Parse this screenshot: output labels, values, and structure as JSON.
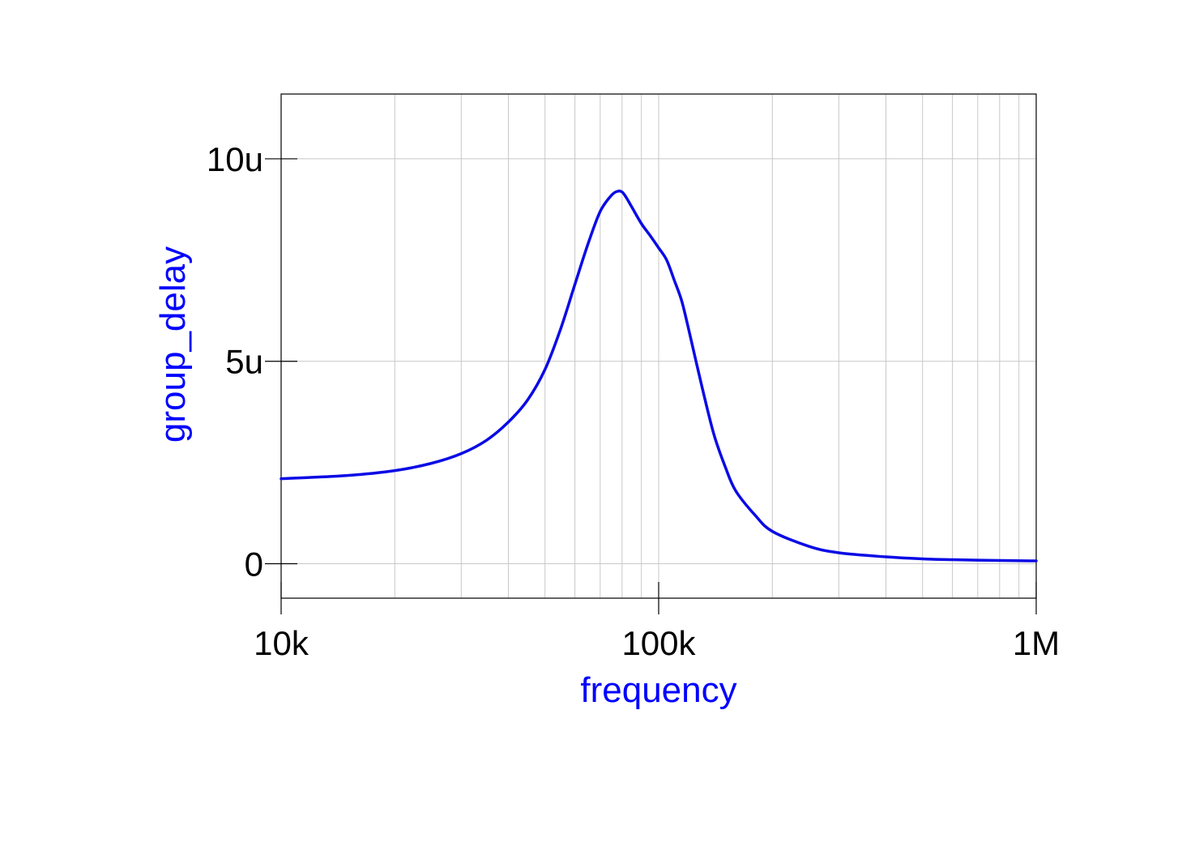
{
  "chart_data": {
    "type": "line",
    "xlabel": "frequency",
    "ylabel": "group_delay",
    "x_scale": "log",
    "xlim": [
      10000,
      1000000
    ],
    "ylim": [
      -8.5e-07,
      1.16e-05
    ],
    "grid": true,
    "x_ticks": [
      {
        "value": 10000,
        "label": "10k"
      },
      {
        "value": 100000,
        "label": "100k"
      },
      {
        "value": 1000000,
        "label": "1M"
      }
    ],
    "y_ticks": [
      {
        "value": 0,
        "label": "0"
      },
      {
        "value": 5e-06,
        "label": "5u"
      },
      {
        "value": 1e-05,
        "label": "10u"
      }
    ],
    "colors": {
      "series": "#0a0ae6",
      "label": "#0000ff",
      "grid": "#c8c8c8",
      "frame": "#000000"
    },
    "series": [
      {
        "x": [
          10000,
          15000,
          20000,
          25000,
          30000,
          35000,
          40000,
          45000,
          50000,
          55000,
          60000,
          65000,
          70000,
          75000,
          78000,
          80000,
          82000,
          85000,
          90000,
          95000,
          100000,
          105000,
          110000,
          115000,
          120000,
          130000,
          140000,
          150000,
          160000,
          180000,
          200000,
          250000,
          300000,
          400000,
          500000,
          600000,
          800000,
          1000000
        ],
        "values": [
          2.1e-06,
          2.18e-06,
          2.3e-06,
          2.48e-06,
          2.72e-06,
          3.05e-06,
          3.5e-06,
          4.05e-06,
          4.8e-06,
          5.8e-06,
          6.9e-06,
          7.9e-06,
          8.7e-06,
          9.1e-06,
          9.2e-06,
          9.18e-06,
          9.05e-06,
          8.8e-06,
          8.4e-06,
          8.1e-06,
          7.8e-06,
          7.5e-06,
          7e-06,
          6.5e-06,
          5.8e-06,
          4.4e-06,
          3.2e-06,
          2.4e-06,
          1.8e-06,
          1.2e-06,
          8e-07,
          4.3e-07,
          2.7e-07,
          1.7e-07,
          1.2e-07,
          1e-07,
          8e-08,
          7e-08
        ]
      }
    ]
  }
}
